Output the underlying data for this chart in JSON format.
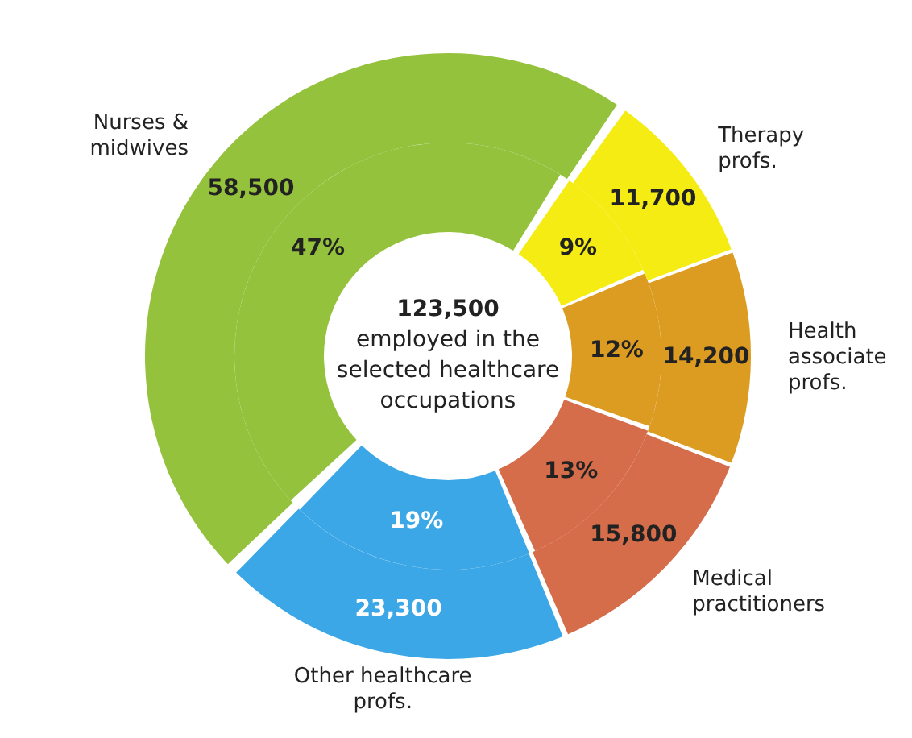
{
  "chart_data": {
    "type": "donut",
    "categories": [
      "Nurses & midwives",
      "Therapy profs.",
      "Health associate profs.",
      "Medical practitioners",
      "Other healthcare profs."
    ],
    "colors": [
      "#94c23d",
      "#f5ec14",
      "#dc9c22",
      "#d56c4a",
      "#3ba7e6"
    ],
    "series": [
      {
        "values": [
          58500,
          11700,
          14200,
          15800,
          23300
        ],
        "value_labels": [
          "58,500",
          "11,700",
          "14,200",
          "15,800",
          "23,300"
        ]
      },
      {
        "values": [
          47,
          9,
          12,
          13,
          19
        ],
        "value_labels": [
          "47%",
          "9%",
          "12%",
          "13%",
          "19%"
        ]
      }
    ],
    "annotations": [
      "123,500",
      "employed in the selected healthcare occupations"
    ]
  }
}
